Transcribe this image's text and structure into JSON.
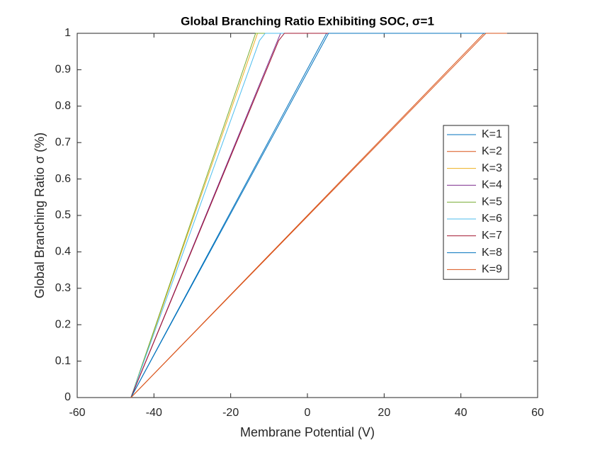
{
  "chart_data": {
    "type": "line",
    "title": "Global Branching Ratio Exhibiting SOC, σ=1",
    "xlabel": "Membrane Potential (V)",
    "ylabel": "Global Branching Ratio σ (%)",
    "xlim": [
      -60,
      60
    ],
    "xticks": [
      -60,
      -40,
      -20,
      0,
      20,
      40,
      60
    ],
    "ylim": [
      0,
      1
    ],
    "yticks": [
      0,
      0.1,
      0.2,
      0.3,
      0.4,
      0.5,
      0.6,
      0.7,
      0.8,
      0.9,
      1
    ],
    "grid": false,
    "legend": "east",
    "series": [
      {
        "name": "K=1",
        "color": "#0072BD",
        "x": [
          -46,
          5,
          52
        ],
        "values": [
          0,
          1,
          1
        ]
      },
      {
        "name": "K=2",
        "color": "#D95319",
        "x": [
          -46,
          46,
          52
        ],
        "values": [
          0,
          1,
          1
        ]
      },
      {
        "name": "K=3",
        "color": "#EDB120",
        "x": [
          -46,
          -13,
          52
        ],
        "values": [
          0,
          1,
          1
        ]
      },
      {
        "name": "K=4",
        "color": "#7E2F8E",
        "x": [
          -46,
          -7,
          52
        ],
        "values": [
          0,
          1,
          1
        ]
      },
      {
        "name": "K=5",
        "color": "#77AC30",
        "x": [
          -46,
          -13.5,
          52
        ],
        "values": [
          0,
          1,
          1
        ]
      },
      {
        "name": "K=6",
        "color": "#4DBEEE",
        "x": [
          -46,
          -12.5,
          -11,
          52
        ],
        "values": [
          0,
          0.98,
          1,
          1
        ]
      },
      {
        "name": "K=7",
        "color": "#A2142F",
        "x": [
          -46,
          -7.5,
          -6,
          52
        ],
        "values": [
          0,
          0.98,
          1,
          1
        ]
      },
      {
        "name": "K=8",
        "color": "#0072BD",
        "x": [
          -46,
          5.5,
          52
        ],
        "values": [
          0,
          1,
          1
        ]
      },
      {
        "name": "K=9",
        "color": "#D95319",
        "x": [
          -46,
          46.5,
          52
        ],
        "values": [
          0,
          1,
          1
        ]
      }
    ]
  }
}
